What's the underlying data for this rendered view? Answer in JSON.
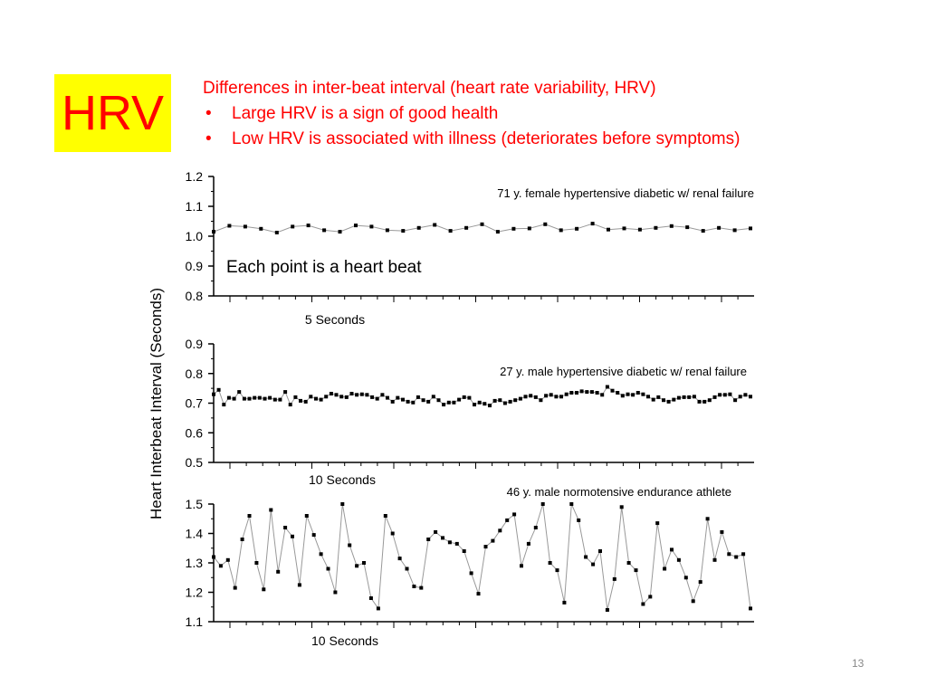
{
  "slide": {
    "title": "HRV",
    "heading": "Differences in inter-beat interval (heart rate variability, HRV)",
    "bullets": [
      "Large HRV is a sign of good health",
      "Low HRV is associated with illness (deteriorates before symptoms)"
    ],
    "bullet_symbol": "•",
    "slide_number": "13",
    "colors": {
      "title_bg": "#ffff00",
      "title_text": "#ff0000",
      "body_text": "#ff0000",
      "series": "#999999",
      "points": "#000000"
    }
  },
  "figure": {
    "ylabel": "Heart Interbeat Interval (Seconds)",
    "annotation": "Each point is a heart beat"
  },
  "chart_data": [
    {
      "type": "line",
      "title": "71 y. female hypertensive diabetic w/ renal failure",
      "xlabel": "5 Seconds",
      "ylabel": "Heart Interbeat Interval (Seconds)",
      "ylim": [
        0.8,
        1.2
      ],
      "yticks": [
        "1.2",
        "1.1",
        "1.0",
        "0.9",
        "0.8"
      ],
      "grid": false,
      "series": [
        {
          "values": [
            1.015,
            1.035,
            1.032,
            1.025,
            1.012,
            1.032,
            1.036,
            1.02,
            1.015,
            1.036,
            1.032,
            1.02,
            1.018,
            1.028,
            1.038,
            1.018,
            1.028,
            1.04,
            1.015,
            1.025,
            1.026,
            1.04,
            1.02,
            1.025,
            1.042,
            1.022,
            1.026,
            1.022,
            1.028,
            1.034,
            1.03,
            1.018,
            1.028,
            1.02,
            1.026
          ]
        }
      ]
    },
    {
      "type": "line",
      "title": "27 y. male hypertensive diabetic w/ renal failure",
      "xlabel": "10 Seconds",
      "ylabel": "Heart Interbeat Interval (Seconds)",
      "ylim": [
        0.5,
        0.9
      ],
      "yticks": [
        "0.9",
        "0.8",
        "0.7",
        "0.6",
        "0.5"
      ],
      "grid": false,
      "series": [
        {
          "values": [
            0.73,
            0.745,
            0.695,
            0.718,
            0.715,
            0.738,
            0.715,
            0.715,
            0.718,
            0.718,
            0.715,
            0.718,
            0.712,
            0.712,
            0.738,
            0.695,
            0.72,
            0.708,
            0.705,
            0.722,
            0.715,
            0.712,
            0.722,
            0.732,
            0.728,
            0.722,
            0.72,
            0.732,
            0.728,
            0.73,
            0.728,
            0.72,
            0.715,
            0.728,
            0.718,
            0.705,
            0.718,
            0.712,
            0.705,
            0.702,
            0.72,
            0.71,
            0.705,
            0.722,
            0.71,
            0.695,
            0.702,
            0.702,
            0.712,
            0.72,
            0.718,
            0.695,
            0.702,
            0.698,
            0.692,
            0.708,
            0.71,
            0.7,
            0.705,
            0.71,
            0.715,
            0.722,
            0.725,
            0.72,
            0.71,
            0.725,
            0.728,
            0.722,
            0.722,
            0.73,
            0.735,
            0.735,
            0.74,
            0.738,
            0.738,
            0.735,
            0.728,
            0.755,
            0.742,
            0.735,
            0.725,
            0.73,
            0.728,
            0.735,
            0.73,
            0.722,
            0.712,
            0.72,
            0.71,
            0.705,
            0.712,
            0.718,
            0.72,
            0.72,
            0.722,
            0.705,
            0.705,
            0.71,
            0.72,
            0.728,
            0.728,
            0.73,
            0.71,
            0.722,
            0.728,
            0.722
          ]
        }
      ]
    },
    {
      "type": "line",
      "title": "46 y. male normotensive endurance athlete",
      "xlabel": "10 Seconds",
      "ylabel": "Heart Interbeat Interval (Seconds)",
      "ylim": [
        1.1,
        1.5
      ],
      "yticks": [
        "1.5",
        "1.4",
        "1.3",
        "1.2",
        "1.1"
      ],
      "grid": false,
      "series": [
        {
          "values": [
            1.32,
            1.29,
            1.31,
            1.215,
            1.38,
            1.46,
            1.3,
            1.21,
            1.48,
            1.27,
            1.42,
            1.39,
            1.225,
            1.46,
            1.395,
            1.33,
            1.28,
            1.2,
            1.5,
            1.36,
            1.29,
            1.3,
            1.18,
            1.145,
            1.46,
            1.4,
            1.315,
            1.28,
            1.22,
            1.215,
            1.38,
            1.405,
            1.385,
            1.37,
            1.365,
            1.34,
            1.265,
            1.195,
            1.355,
            1.375,
            1.41,
            1.445,
            1.465,
            1.29,
            1.365,
            1.42,
            1.5,
            1.3,
            1.275,
            1.165,
            1.5,
            1.445,
            1.32,
            1.295,
            1.34,
            1.14,
            1.245,
            1.49,
            1.3,
            1.275,
            1.16,
            1.185,
            1.435,
            1.28,
            1.345,
            1.31,
            1.25,
            1.17,
            1.235,
            1.45,
            1.31,
            1.405,
            1.33,
            1.32,
            1.33,
            1.145
          ]
        }
      ]
    }
  ]
}
